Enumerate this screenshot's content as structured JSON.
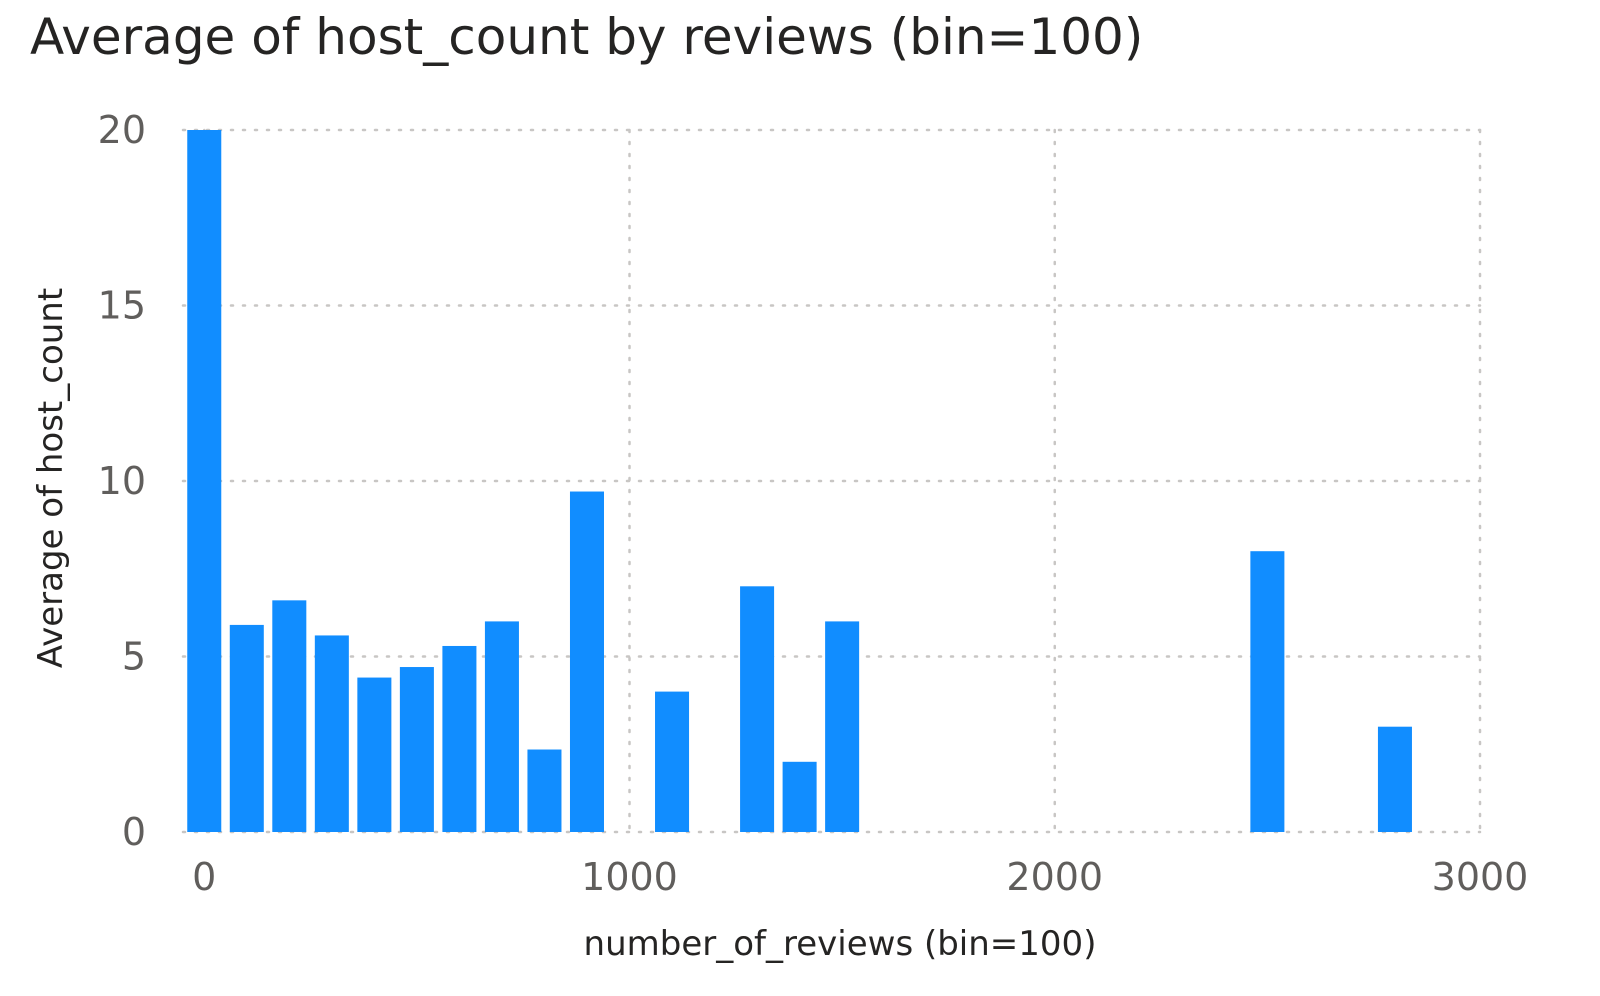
{
  "chart_data": {
    "type": "bar",
    "title": "Average of host_count by reviews (bin=100)",
    "xlabel": "number_of_reviews (bin=100)",
    "ylabel": "Average of host_count",
    "bin_width": 100,
    "xlim": [
      -50,
      3000
    ],
    "ylim": [
      0,
      20
    ],
    "xticks": [
      0,
      1000,
      2000,
      3000
    ],
    "yticks": [
      0,
      5,
      10,
      15,
      20
    ],
    "grid": true,
    "bar_color": "#118dff",
    "x": [
      0,
      100,
      200,
      300,
      400,
      500,
      600,
      700,
      800,
      900,
      1100,
      1300,
      1400,
      1500,
      2500,
      2800
    ],
    "values": [
      20,
      5.9,
      6.6,
      5.6,
      4.4,
      4.7,
      5.3,
      6.0,
      2.35,
      9.7,
      4.0,
      7.0,
      2.0,
      6.0,
      8.0,
      3.0
    ]
  }
}
